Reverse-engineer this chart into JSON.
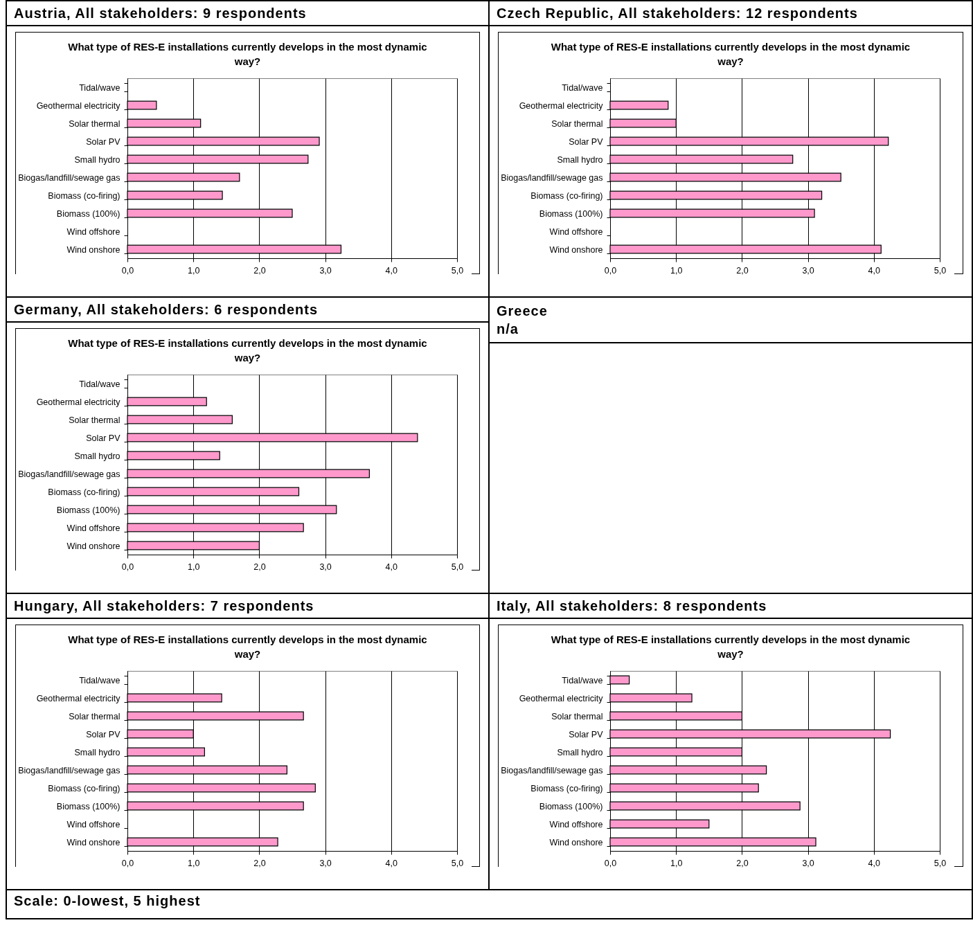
{
  "chart_data": [
    {
      "type": "bar",
      "orientation": "horizontal",
      "title": "Austria, All stakeholders: 9 respondents",
      "subtitle": "What type of RES-E installations currently develops in the most dynamic way?",
      "categories": [
        "Tidal/wave",
        "Geothermal electricity",
        "Solar thermal",
        "Solar PV",
        "Small hydro",
        "Biogas/landfill/sewage gas",
        "Biomass (co-firing)",
        "Biomass (100%)",
        "Wind offshore",
        "Wind onshore"
      ],
      "series": [
        {
          "color": "#ff99cc",
          "values": [
            null,
            0.44,
            1.11,
            2.91,
            2.74,
            1.7,
            1.44,
            2.5,
            null,
            3.24
          ]
        }
      ],
      "xlim": [
        0,
        5
      ],
      "xticks": [
        {
          "value": 0,
          "label": "0,0"
        },
        {
          "value": 1,
          "label": "1,0"
        },
        {
          "value": 2,
          "label": "2,0"
        },
        {
          "value": 3,
          "label": "3,0"
        },
        {
          "value": 4,
          "label": "4,0"
        },
        {
          "value": 5,
          "label": "5,0"
        }
      ],
      "grid": "x"
    },
    {
      "type": "bar",
      "orientation": "horizontal",
      "title": "Czech Republic, All stakeholders: 12 respondents",
      "subtitle": "What type of RES-E installations currently develops in the most dynamic way?",
      "categories": [
        "Tidal/wave",
        "Geothermal electricity",
        "Solar thermal",
        "Solar PV",
        "Small hydro",
        "Biogas/landfill/sewage gas",
        "Biomass (co-firing)",
        "Biomass (100%)",
        "Wind offshore",
        "Wind onshore"
      ],
      "series": [
        {
          "color": "#ff99cc",
          "values": [
            null,
            0.88,
            1.0,
            4.22,
            2.77,
            3.5,
            3.21,
            3.1,
            null,
            4.11
          ]
        }
      ],
      "xlim": [
        0,
        5
      ],
      "xticks": [
        {
          "value": 0,
          "label": "0,0"
        },
        {
          "value": 1,
          "label": "1,0"
        },
        {
          "value": 2,
          "label": "2,0"
        },
        {
          "value": 3,
          "label": "3,0"
        },
        {
          "value": 4,
          "label": "4,0"
        },
        {
          "value": 5,
          "label": "5,0"
        }
      ],
      "grid": "x"
    },
    {
      "type": "bar",
      "orientation": "horizontal",
      "title": "Germany, All stakeholders: 6 respondents",
      "subtitle": "What type of RES-E installations currently develops in the most dynamic way?",
      "categories": [
        "Tidal/wave",
        "Geothermal electricity",
        "Solar thermal",
        "Solar PV",
        "Small hydro",
        "Biogas/landfill/sewage gas",
        "Biomass (co-firing)",
        "Biomass (100%)",
        "Wind offshore",
        "Wind onshore"
      ],
      "series": [
        {
          "color": "#ff99cc",
          "values": [
            null,
            1.2,
            1.59,
            4.4,
            1.4,
            3.67,
            2.6,
            3.17,
            2.67,
            2.0
          ]
        }
      ],
      "xlim": [
        0,
        5
      ],
      "xticks": [
        {
          "value": 0,
          "label": "0,0"
        },
        {
          "value": 1,
          "label": "1,0"
        },
        {
          "value": 2,
          "label": "2,0"
        },
        {
          "value": 3,
          "label": "3,0"
        },
        {
          "value": 4,
          "label": "4,0"
        },
        {
          "value": 5,
          "label": "5,0"
        }
      ],
      "grid": "x"
    },
    {
      "type": "other",
      "title": "Greece",
      "annotations": [
        "n/a"
      ]
    },
    {
      "type": "bar",
      "orientation": "horizontal",
      "title": "Hungary, All stakeholders: 7 respondents",
      "subtitle": "What type of RES-E installations currently develops in the most dynamic way?",
      "categories": [
        "Tidal/wave",
        "Geothermal electricity",
        "Solar thermal",
        "Solar PV",
        "Small hydro",
        "Biogas/landfill/sewage gas",
        "Biomass (co-firing)",
        "Biomass (100%)",
        "Wind offshore",
        "Wind onshore"
      ],
      "series": [
        {
          "color": "#ff99cc",
          "values": [
            null,
            1.43,
            2.67,
            1.0,
            1.17,
            2.42,
            2.85,
            2.67,
            null,
            2.28
          ]
        }
      ],
      "xlim": [
        0,
        5
      ],
      "xticks": [
        {
          "value": 0,
          "label": "0,0"
        },
        {
          "value": 1,
          "label": "1,0"
        },
        {
          "value": 2,
          "label": "2,0"
        },
        {
          "value": 3,
          "label": "3,0"
        },
        {
          "value": 4,
          "label": "4,0"
        },
        {
          "value": 5,
          "label": "5,0"
        }
      ],
      "grid": "x"
    },
    {
      "type": "bar",
      "orientation": "horizontal",
      "title": "Italy, All stakeholders: 8 respondents",
      "subtitle": "What type of RES-E installations currently develops in the most dynamic way?",
      "categories": [
        "Tidal/wave",
        "Geothermal electricity",
        "Solar thermal",
        "Solar PV",
        "Small hydro",
        "Biogas/landfill/sewage gas",
        "Biomass (co-firing)",
        "Biomass (100%)",
        "Wind offshore",
        "Wind onshore"
      ],
      "series": [
        {
          "color": "#ff99cc",
          "values": [
            0.29,
            1.24,
            2.0,
            4.25,
            2.0,
            2.37,
            2.25,
            2.88,
            1.5,
            3.12
          ]
        }
      ],
      "xlim": [
        0,
        5
      ],
      "xticks": [
        {
          "value": 0,
          "label": "0,0"
        },
        {
          "value": 1,
          "label": "1,0"
        },
        {
          "value": 2,
          "label": "2,0"
        },
        {
          "value": 3,
          "label": "3,0"
        },
        {
          "value": 4,
          "label": "4,0"
        },
        {
          "value": 5,
          "label": "5,0"
        }
      ],
      "grid": "x"
    },
    {
      "type": "other",
      "annotations": [
        "Scale: 0-lowest, 5 highest"
      ]
    }
  ]
}
